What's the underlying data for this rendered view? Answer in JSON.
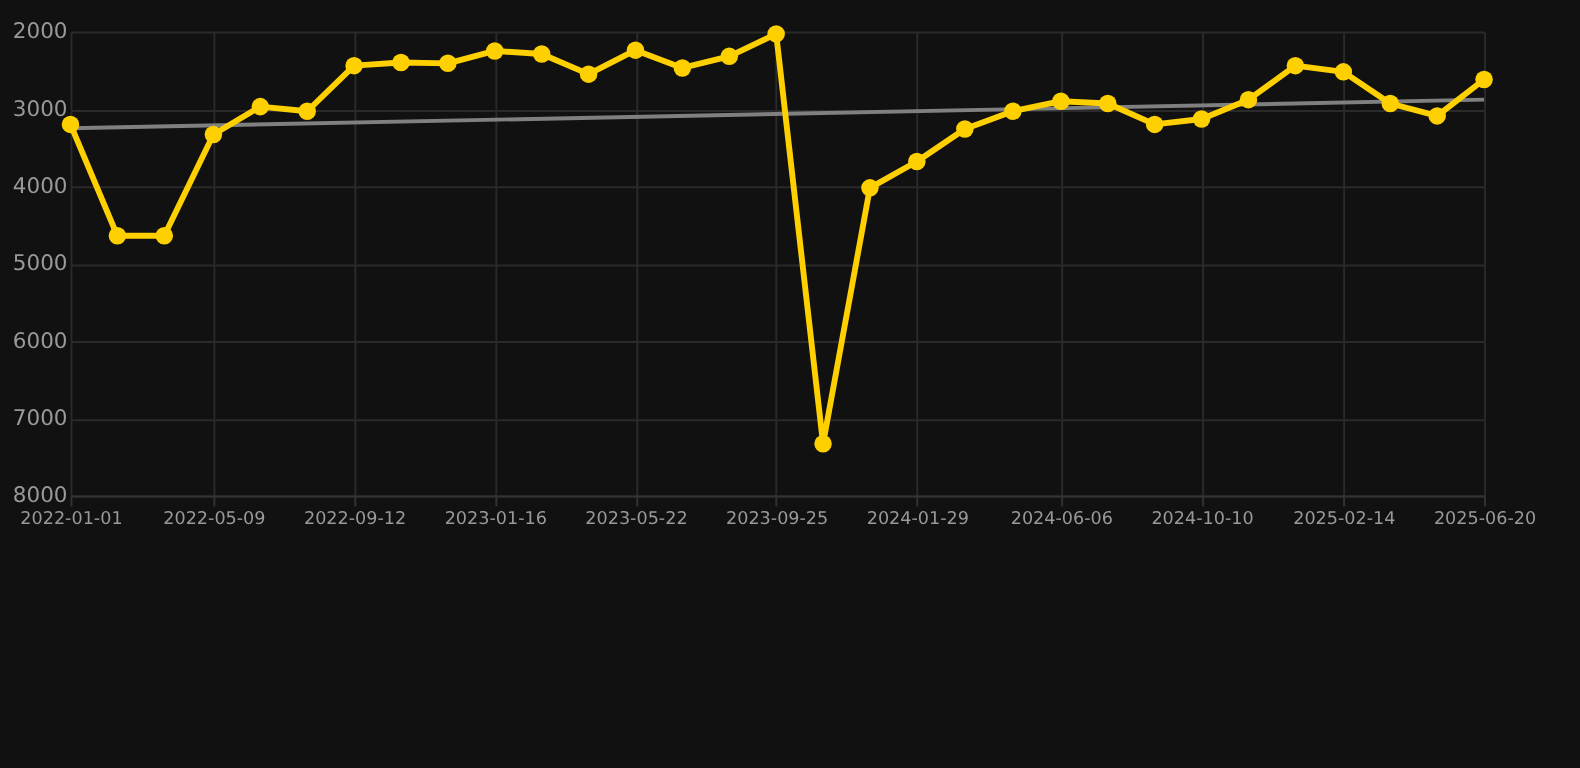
{
  "chart_data": {
    "type": "line",
    "x": [
      "2022-01-01",
      "2022-02-12",
      "2022-03-26",
      "2022-05-09",
      "2022-06-20",
      "2022-08-01",
      "2022-09-12",
      "2022-10-24",
      "2022-12-05",
      "2023-01-16",
      "2023-02-27",
      "2023-04-10",
      "2023-05-22",
      "2023-07-03",
      "2023-08-14",
      "2023-09-25",
      "2023-11-06",
      "2023-12-18",
      "2024-01-29",
      "2024-03-12",
      "2024-04-24",
      "2024-06-06",
      "2024-07-18",
      "2024-08-29",
      "2024-10-10",
      "2024-11-21",
      "2025-01-02",
      "2025-02-14",
      "2025-03-28",
      "2025-05-09",
      "2025-06-20"
    ],
    "series": [
      {
        "color": "#ffd000",
        "marker": "circle",
        "values": [
          3200,
          4640,
          4640,
          3330,
          2970,
          3030,
          2440,
          2400,
          2410,
          2250,
          2290,
          2550,
          2240,
          2470,
          2320,
          2030,
          7330,
          4020,
          3680,
          3260,
          3030,
          2900,
          2930,
          3200,
          3130,
          2880,
          2440,
          2520,
          2930,
          3090,
          2620
        ]
      },
      {
        "type": "line",
        "color": "#808080",
        "marker": "none",
        "x": [
          "2022-01-01",
          "2025-06-20"
        ],
        "values": [
          3250,
          2880
        ]
      }
    ],
    "xlim": [
      "2022-01-01",
      "2025-06-20"
    ],
    "xticks": [
      "2022-01-01",
      "2022-05-09",
      "2022-09-12",
      "2023-01-16",
      "2023-05-22",
      "2023-09-25",
      "2024-01-29",
      "2024-06-06",
      "2024-10-10",
      "2025-02-14",
      "2025-06-20"
    ],
    "ylim": [
      8000,
      2000
    ],
    "yticks": [
      2000,
      3000,
      4000,
      5000,
      6000,
      7000,
      8000
    ],
    "grid": true,
    "legend": false
  }
}
